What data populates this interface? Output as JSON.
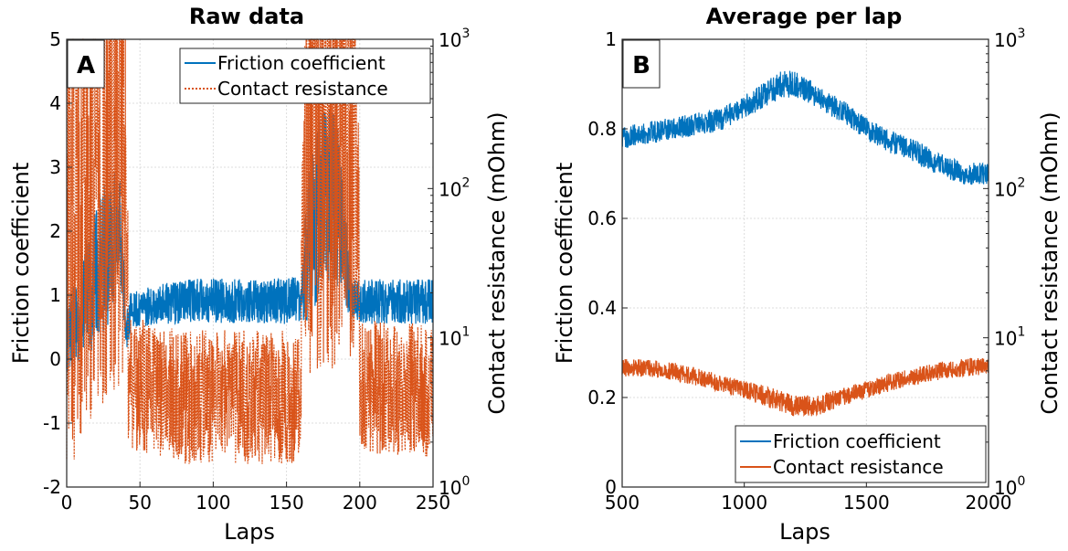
{
  "chart_data": [
    {
      "panel_label": "A",
      "type": "line",
      "title": "Raw data",
      "xlabel": "Laps",
      "ylabel_left": "Friction coefficient",
      "ylabel_right": "Contact resistance (mOhm)",
      "xlim": [
        0,
        250
      ],
      "ylim_left": [
        -2,
        5
      ],
      "ylim_right": [
        1,
        1000
      ],
      "right_scale": "log",
      "grid": true,
      "legend_position": "top-right",
      "xticks": [
        "0",
        "50",
        "100",
        "150",
        "200",
        "250"
      ],
      "yticks_left": [
        "-2",
        "-1",
        "0",
        "1",
        "2",
        "3",
        "4",
        "5"
      ],
      "series": [
        {
          "name": "Friction coefficient",
          "axis": "left",
          "color": "#0072BD",
          "style": "solid",
          "x": [
            0,
            10,
            20,
            30,
            36,
            40,
            45,
            60,
            80,
            100,
            120,
            140,
            160,
            165,
            175,
            185,
            195,
            200,
            220,
            250
          ],
          "y": [
            0.3,
            0.8,
            1.4,
            1.8,
            2.3,
            0.5,
            0.75,
            0.85,
            0.9,
            0.92,
            0.9,
            0.9,
            0.95,
            1.8,
            2.6,
            2.4,
            0.9,
            0.9,
            0.9,
            0.9
          ],
          "spread": [
            0.5,
            0.8,
            1.2,
            1.2,
            0.8,
            0.5,
            0.3,
            0.3,
            0.35,
            0.35,
            0.35,
            0.35,
            0.4,
            1.2,
            1.5,
            1.3,
            0.35,
            0.35,
            0.35,
            0.35
          ]
        },
        {
          "name": "Contact resistance",
          "axis": "right",
          "color": "#D95319",
          "style": "dotted",
          "x": [
            0,
            10,
            20,
            30,
            38,
            42,
            60,
            80,
            100,
            120,
            140,
            160,
            165,
            170,
            180,
            190,
            196,
            200,
            220,
            250
          ],
          "y": [
            50,
            100,
            150,
            200,
            250,
            5,
            4.5,
            4,
            4,
            4,
            4,
            4,
            250,
            300,
            300,
            300,
            250,
            5,
            4.5,
            4.5
          ],
          "spread_log10": [
            1.7,
            1.7,
            1.7,
            1.7,
            1.7,
            0.45,
            0.45,
            0.45,
            0.45,
            0.45,
            0.45,
            0.45,
            1.7,
            1.7,
            1.7,
            1.7,
            1.7,
            0.45,
            0.45,
            0.45
          ]
        }
      ]
    },
    {
      "panel_label": "B",
      "type": "line",
      "title": "Average per lap",
      "xlabel": "Laps",
      "ylabel_left": "Friction coefficient",
      "ylabel_right": "Contact resistance (mOhm)",
      "xlim": [
        500,
        2000
      ],
      "ylim_left": [
        0,
        1
      ],
      "ylim_right": [
        1,
        1000
      ],
      "right_scale": "log",
      "grid": true,
      "legend_position": "bottom-right",
      "xticks": [
        "500",
        "1000",
        "1500",
        "2000"
      ],
      "yticks_left": [
        "0",
        "0.2",
        "0.4",
        "0.6",
        "0.8",
        "1"
      ],
      "series": [
        {
          "name": "Friction coefficient",
          "axis": "left",
          "color": "#0072BD",
          "style": "solid",
          "x": [
            500,
            600,
            700,
            800,
            900,
            1000,
            1100,
            1150,
            1200,
            1250,
            1300,
            1400,
            1500,
            1600,
            1700,
            1800,
            1900,
            2000
          ],
          "y": [
            0.78,
            0.79,
            0.8,
            0.81,
            0.82,
            0.85,
            0.88,
            0.9,
            0.9,
            0.89,
            0.87,
            0.84,
            0.8,
            0.77,
            0.75,
            0.72,
            0.7,
            0.7
          ],
          "spread": [
            0.025,
            0.025,
            0.025,
            0.025,
            0.025,
            0.025,
            0.03,
            0.03,
            0.03,
            0.03,
            0.025,
            0.025,
            0.025,
            0.025,
            0.025,
            0.025,
            0.025,
            0.025
          ]
        },
        {
          "name": "Contact resistance",
          "axis": "right",
          "color": "#D95319",
          "style": "solid",
          "x": [
            500,
            600,
            700,
            800,
            900,
            1000,
            1100,
            1200,
            1300,
            1400,
            1500,
            1600,
            1700,
            1800,
            1900,
            2000
          ],
          "y": [
            6.3,
            6.3,
            6,
            5.5,
            5,
            4.5,
            4,
            3.5,
            3.5,
            4,
            4.5,
            5,
            5.5,
            6,
            6.3,
            6.5
          ],
          "spread_log10": [
            0.06,
            0.06,
            0.06,
            0.06,
            0.06,
            0.06,
            0.07,
            0.07,
            0.07,
            0.06,
            0.06,
            0.06,
            0.06,
            0.06,
            0.06,
            0.06
          ]
        }
      ]
    }
  ]
}
